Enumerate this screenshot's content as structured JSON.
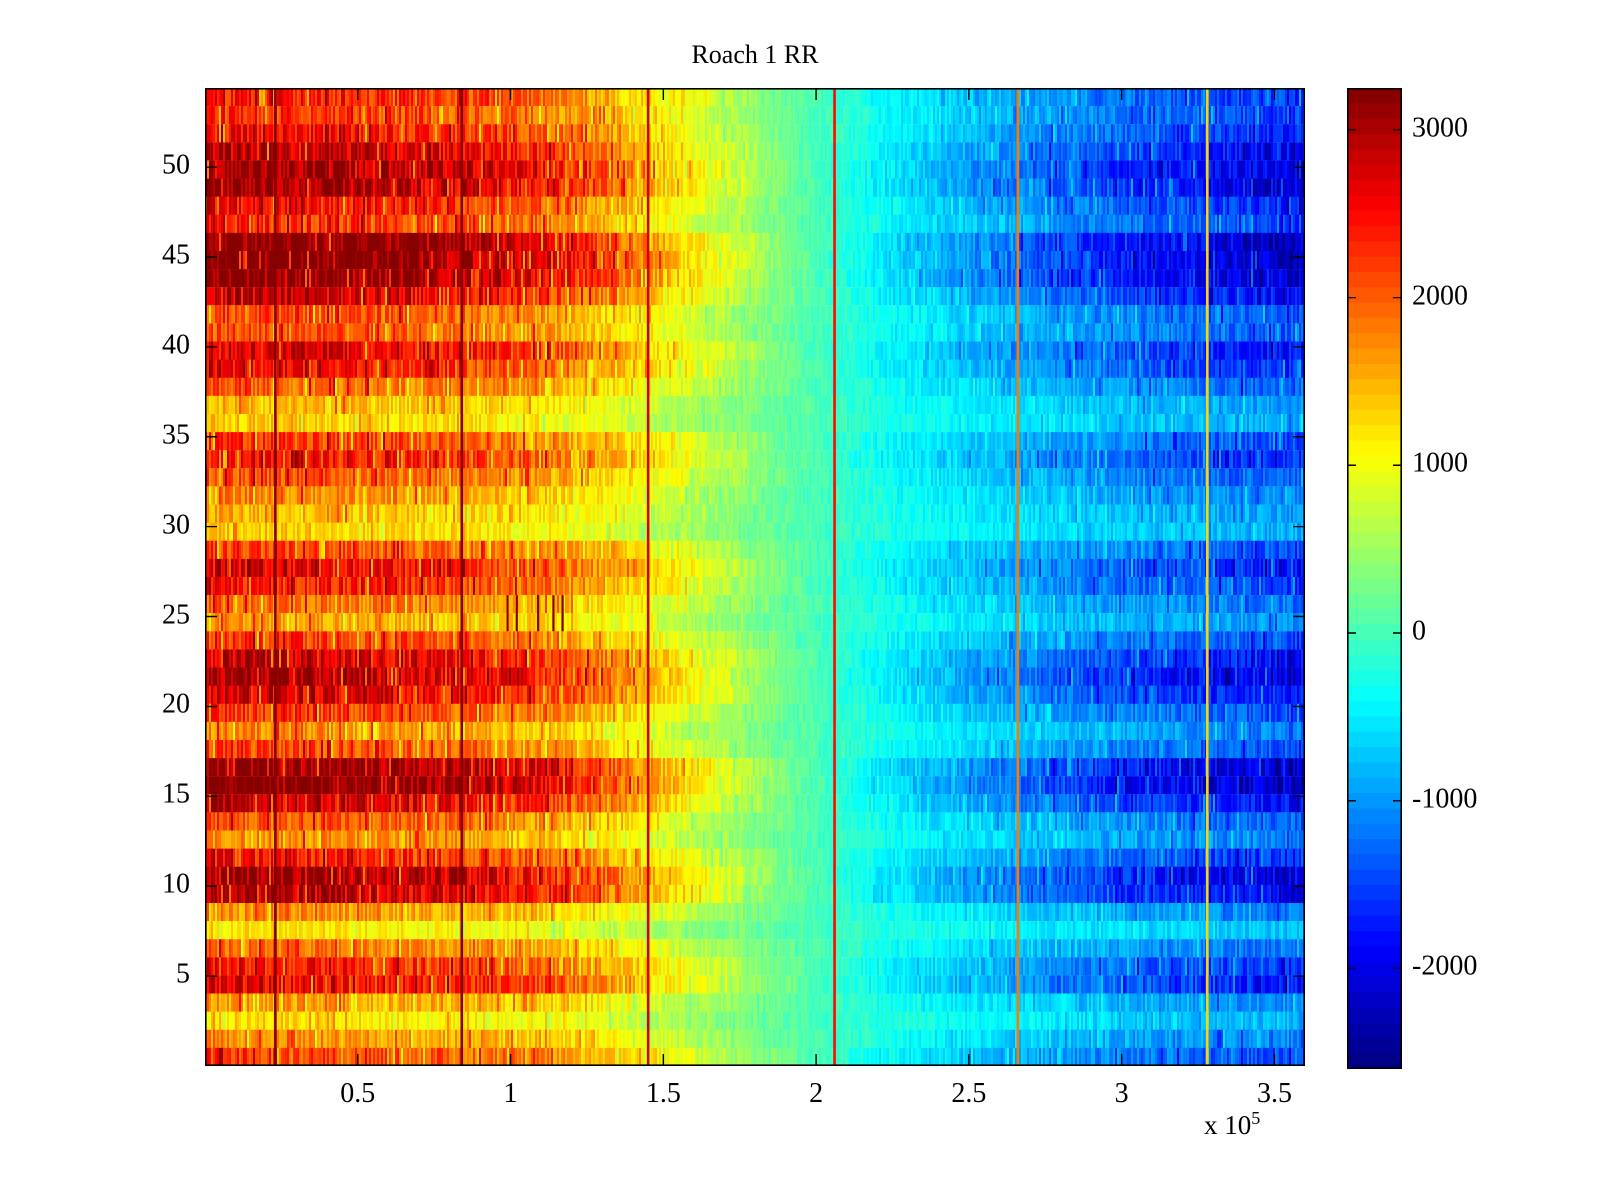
{
  "chart_data": {
    "type": "heatmap",
    "title": "Roach 1 RR",
    "colormap": "jet",
    "clim": [
      -2600,
      3250
    ],
    "colormap_levels": 64,
    "n_rows": 54,
    "x_range_1e5": [
      0,
      3.6
    ],
    "y_range": [
      0,
      54.4
    ],
    "x_axis": {
      "tick_values_1e5": [
        0.5,
        1,
        1.5,
        2,
        2.5,
        3,
        3.5
      ],
      "tick_labels": [
        "0.5",
        "1",
        "1.5",
        "2",
        "2.5",
        "3",
        "3.5"
      ],
      "exponent_prefix": "x 10",
      "exponent": "5"
    },
    "y_axis": {
      "tick_values": [
        5,
        10,
        15,
        20,
        25,
        30,
        35,
        40,
        45,
        50
      ],
      "tick_labels": [
        "5",
        "10",
        "15",
        "20",
        "25",
        "30",
        "35",
        "40",
        "45",
        "50"
      ]
    },
    "colorbar": {
      "tick_values": [
        3000,
        2000,
        1000,
        0,
        -1000,
        -2000
      ],
      "tick_labels": [
        "3000",
        "2000",
        "1000",
        "0",
        "-1000",
        "-2000"
      ]
    },
    "trend_x_1e5": [
      0,
      0.4,
      0.8,
      1.1,
      1.3,
      1.5,
      1.7,
      1.95,
      2.2,
      2.5,
      2.8,
      3.1,
      3.4,
      3.6
    ],
    "trend_value": [
      2450,
      2350,
      2150,
      1900,
      1550,
      1100,
      650,
      100,
      -350,
      -750,
      -1050,
      -1300,
      -1500,
      -1600
    ],
    "row_gains_top_to_bottom": [
      1.0,
      0.95,
      1.05,
      1.2,
      1.3,
      1.28,
      1.05,
      0.95,
      1.38,
      1.42,
      1.38,
      1.18,
      0.88,
      0.85,
      1.12,
      1.05,
      0.82,
      0.62,
      0.56,
      0.92,
      1.02,
      0.86,
      0.72,
      0.62,
      0.56,
      0.88,
      1.1,
      1.0,
      0.78,
      0.66,
      0.92,
      1.18,
      1.26,
      1.14,
      0.92,
      0.72,
      0.88,
      1.36,
      1.4,
      1.18,
      0.86,
      0.72,
      1.02,
      1.28,
      1.24,
      0.72,
      0.48,
      0.78,
      1.02,
      1.1,
      0.68,
      0.52,
      0.72,
      0.92
    ],
    "noise_base": 150,
    "noise_trend_fraction": 0.12,
    "stripe_boost_probability": 0.08,
    "stripe_boost_factor": 1.3,
    "stripe_fade_probability": 0.08,
    "stripe_fade_factor": 0.72,
    "vertical_lines": [
      {
        "x_1e5": 0.23,
        "value": 3250
      },
      {
        "x_1e5": 0.84,
        "value": 3250
      },
      {
        "x_1e5": 1.45,
        "value": 2750
      },
      {
        "x_1e5": 2.06,
        "value": 2450
      },
      {
        "x_1e5": 2.66,
        "value": 1800
      },
      {
        "x_1e5": 3.28,
        "value": 1300
      }
    ],
    "dark_dashes": {
      "rows": [
        25,
        26
      ],
      "x_1e5": [
        0.99,
        1.02,
        1.09,
        1.14,
        1.17
      ],
      "value": 3250
    }
  }
}
